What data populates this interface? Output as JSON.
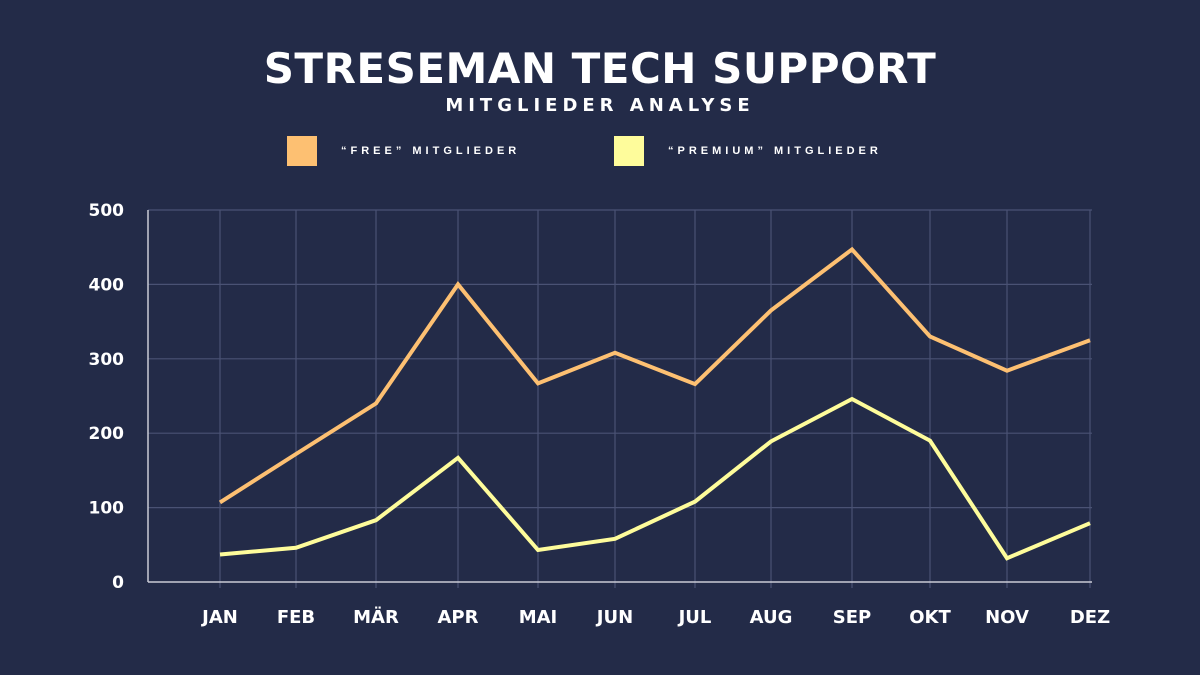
{
  "header": {
    "title": "STRESEMAN TECH SUPPORT",
    "subtitle": "MITGLIEDER ANALYSE"
  },
  "legend": [
    {
      "label": "“FREE” MITGLIEDER",
      "color": "#fdc072"
    },
    {
      "label": "“PREMIUM” MITGLIEDER",
      "color": "#fefc9b"
    }
  ],
  "chart_data": {
    "type": "line",
    "categories": [
      "JAN",
      "FEB",
      "MÄR",
      "APR",
      "MAI",
      "JUN",
      "JUL",
      "AUG",
      "SEP",
      "OKT",
      "NOV",
      "DEZ"
    ],
    "series": [
      {
        "name": "“FREE” MITGLIEDER",
        "color": "#fdc072",
        "values": [
          107,
          172,
          240,
          400,
          267,
          308,
          266,
          365,
          447,
          330,
          284,
          325
        ]
      },
      {
        "name": "“PREMIUM” MITGLIEDER",
        "color": "#fefc9b",
        "values": [
          37,
          46,
          83,
          167,
          43,
          58,
          108,
          189,
          246,
          190,
          32,
          79
        ]
      }
    ],
    "y_ticks": [
      "0",
      "100",
      "200",
      "300",
      "400",
      "500"
    ],
    "ylim": [
      0,
      500
    ],
    "grid": true
  }
}
